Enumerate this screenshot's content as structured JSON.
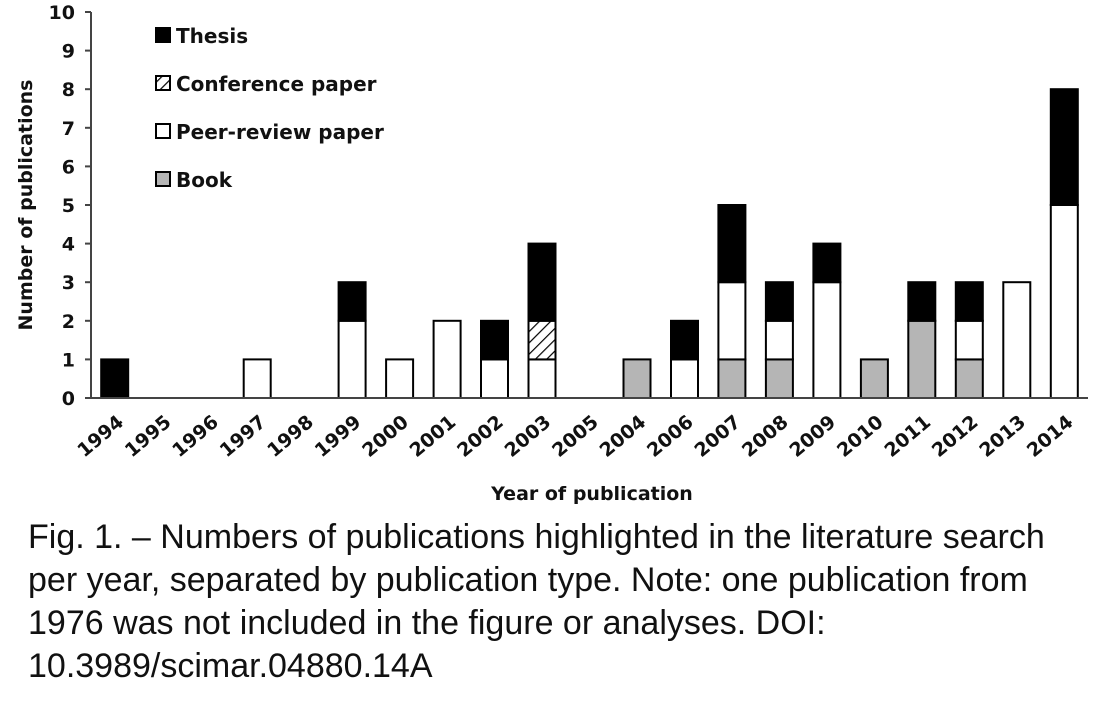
{
  "chart_data": {
    "type": "bar",
    "stacked": true,
    "xlabel": "Year of publication",
    "ylabel": "Number of publications",
    "ylim": [
      0,
      10
    ],
    "yticks": [
      0,
      1,
      2,
      3,
      4,
      5,
      6,
      7,
      8,
      9,
      10
    ],
    "grid": false,
    "legend_position": "top-left",
    "categories": [
      "1994",
      "1995",
      "1996",
      "1997",
      "1998",
      "1999",
      "2000",
      "2001",
      "2002",
      "2003",
      "2005",
      "2004",
      "2006",
      "2007",
      "2008",
      "2009",
      "2010",
      "2011",
      "2012",
      "2013",
      "2014"
    ],
    "series": [
      {
        "name": "Book",
        "fill": "#b5b5b5",
        "values": [
          0,
          0,
          0,
          0,
          0,
          0,
          0,
          0,
          0,
          0,
          0,
          1,
          0,
          1,
          1,
          0,
          1,
          2,
          1,
          0,
          0
        ]
      },
      {
        "name": "Peer-review paper",
        "fill": "#ffffff",
        "values": [
          0,
          0,
          0,
          1,
          0,
          2,
          1,
          2,
          1,
          1,
          0,
          0,
          1,
          2,
          1,
          3,
          0,
          0,
          1,
          3,
          5
        ]
      },
      {
        "name": "Conference paper",
        "fill": "hatch",
        "values": [
          0,
          0,
          0,
          0,
          0,
          0,
          0,
          0,
          0,
          1,
          0,
          0,
          0,
          0,
          0,
          0,
          0,
          0,
          0,
          0,
          0
        ]
      },
      {
        "name": "Thesis",
        "fill": "#000000",
        "values": [
          1,
          0,
          0,
          0,
          0,
          1,
          0,
          0,
          1,
          2,
          0,
          0,
          1,
          2,
          1,
          1,
          0,
          1,
          1,
          0,
          3
        ]
      }
    ],
    "legend_order": [
      "Thesis",
      "Conference paper",
      "Peer-review paper",
      "Book"
    ]
  },
  "caption": "Fig. 1. – Numbers of publications highlighted in the literature search per year, separated by publication type. Note: one publication from 1976 was not included in the figure or analyses. DOI: 10.3989/scimar.04880.14A"
}
